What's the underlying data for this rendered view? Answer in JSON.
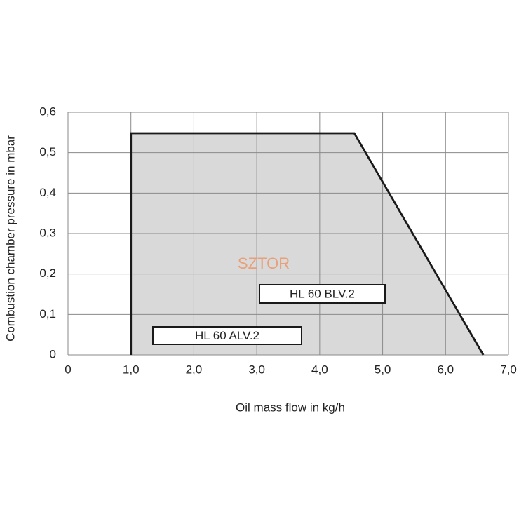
{
  "chart_data": {
    "type": "area",
    "x": [
      1.0,
      1.0,
      4.55,
      6.6
    ],
    "series": [
      {
        "color": "#d9d9d9",
        "values": [
          0,
          0.548,
          0.548,
          0
        ]
      }
    ],
    "xlim": [
      0,
      7
    ],
    "ylim": [
      0,
      0.6
    ],
    "xticks": [
      0,
      {
        "value": 1,
        "label": "1,0"
      },
      {
        "value": 2,
        "label": "2,0"
      },
      {
        "value": 3,
        "label": "3,0"
      },
      {
        "value": 4,
        "label": "4,0"
      },
      {
        "value": 5,
        "label": "5,0"
      },
      {
        "value": 6,
        "label": "6,0"
      },
      {
        "value": 7,
        "label": "7,0"
      }
    ],
    "yticks": [
      0,
      {
        "value": 0.1,
        "label": "0,1"
      },
      {
        "value": 0.2,
        "label": "0,2"
      },
      {
        "value": 0.3,
        "label": "0,3"
      },
      {
        "value": 0.4,
        "label": "0,4"
      },
      {
        "value": 0.5,
        "label": "0,5"
      },
      {
        "value": 0.6,
        "label": "0,6"
      }
    ],
    "grid": true,
    "x_label": "Oil mass flow in kg/h",
    "y_label": "Combustion chamber pressure in mbar",
    "annotations": [
      "SZTOR",
      "HL 60 BLV.2",
      "HL 60 ALV.2"
    ]
  }
}
